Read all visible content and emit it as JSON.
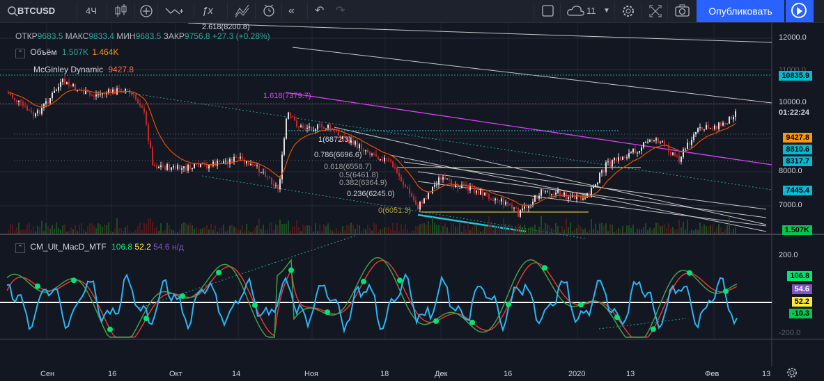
{
  "toolbar": {
    "symbol": "BTCUSD",
    "interval": "4Ч",
    "publish_label": "Опубликовать",
    "cloud_count": "11",
    "icons": [
      "candles-icon",
      "add-indicator-icon",
      "compare-icon",
      "formula-icon",
      "templates-icon",
      "alert-icon",
      "replay-icon",
      "undo-icon",
      "redo-icon",
      "fullscreen-square-icon",
      "cloud-icon",
      "settings-icon",
      "expand-icon",
      "snapshot-icon",
      "play-icon"
    ]
  },
  "ohlc": {
    "open_label": "ОТКР",
    "open": "9683.5",
    "high_label": "МАКС",
    "high": "9833.4",
    "low_label": "МИН",
    "low": "9683.5",
    "close_label": "ЗАКР",
    "close": "9756.8",
    "change": "+27.3 (+0.28%)"
  },
  "indicators": {
    "volume": {
      "name": "Объём",
      "v1": "1.507K",
      "v2": "1.464K"
    },
    "mcginley": {
      "name": "McGinley Dynamic",
      "value": "9427.8"
    },
    "macd": {
      "name": "CM_Ult_MacD_MTF",
      "v1": "106.8",
      "v2": "52.2",
      "v3": "54.6",
      "v4": "н/д"
    }
  },
  "fib_levels": [
    {
      "label": "2.618(8200.8)",
      "color": "#d1d4dc"
    },
    {
      "label": "1.618(7379.7)",
      "color": "#e040fb"
    },
    {
      "label": "1(6872.3)",
      "color": "#d1d4dc"
    },
    {
      "label": "0.786(6696.6)",
      "color": "#d1d4dc"
    },
    {
      "label": "0.618(6558.7)",
      "color": "#9e9e9e"
    },
    {
      "label": "0.5(6461.8)",
      "color": "#9e9e9e"
    },
    {
      "label": "0.382(6364.9)",
      "color": "#9e9e9e"
    },
    {
      "label": "0.236(6245.0)",
      "color": "#d1d4dc"
    },
    {
      "label": "0(6051.3)",
      "color": "#b2a244"
    }
  ],
  "price_axis": {
    "ticks": [
      "12000.0",
      "10000.0",
      "8000.0",
      "7000.0"
    ],
    "hidden_tick": "11000.0",
    "countdown": "01:22:24",
    "tags": [
      {
        "value": "10835.9",
        "color": "#00bcd4"
      },
      {
        "value": "9427.8",
        "color": "#ff9800"
      },
      {
        "value": "8810.6",
        "color": "#00bcd4"
      },
      {
        "value": "8317.7",
        "color": "#00bcd4"
      },
      {
        "value": "7445.4",
        "color": "#00bcd4"
      },
      {
        "value": "1.507K",
        "color": "#00c853"
      }
    ]
  },
  "macd_axis": {
    "ticks": [
      "200.0",
      "-200.0"
    ],
    "tags": [
      {
        "value": "106.8",
        "color": "#00e676"
      },
      {
        "value": "54.6",
        "color": "#7e57c2"
      },
      {
        "value": "52.2",
        "color": "#ffeb3b"
      },
      {
        "value": "-10.3",
        "color": "#00c853"
      }
    ]
  },
  "time_axis": [
    "Сен",
    "16",
    "Окт",
    "14",
    "Ноя",
    "18",
    "Дек",
    "16",
    "2020",
    "13",
    "Фев",
    "13"
  ]
}
